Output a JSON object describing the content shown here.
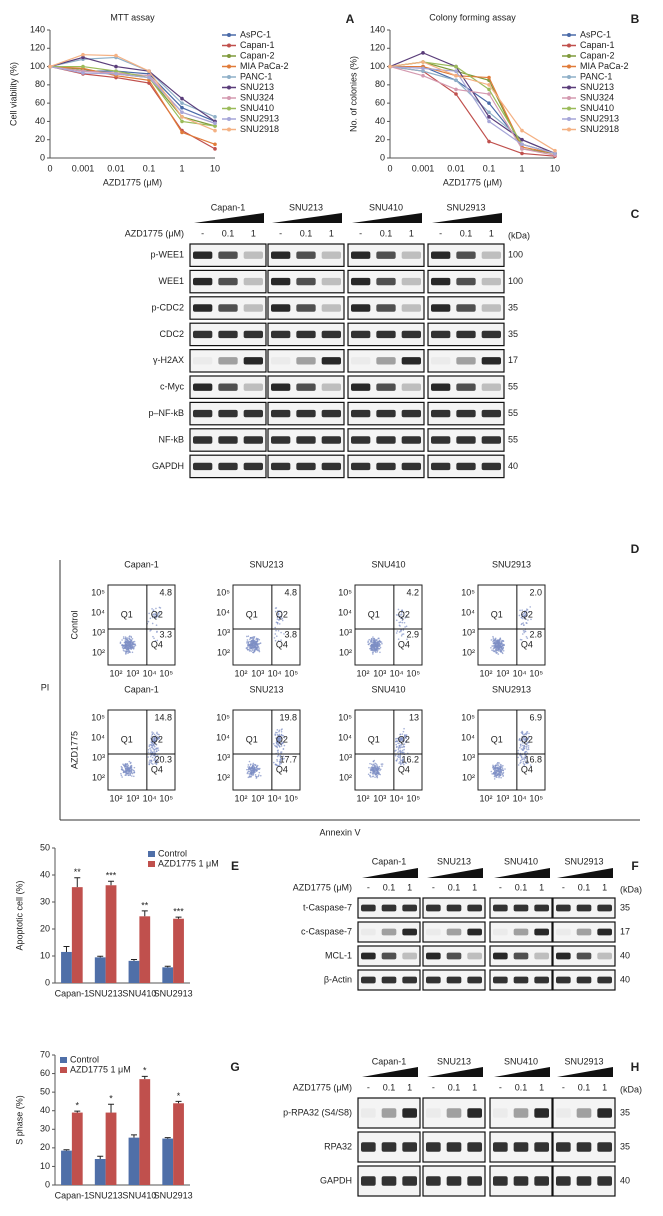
{
  "chart_data": [
    {
      "type": "line",
      "title": "MTT assay",
      "x_label": "AZD1775 (μM)",
      "y_label": "Cell viability (%)",
      "categories": [
        "0",
        "0.001",
        "0.01",
        "0.1",
        "1",
        "10"
      ],
      "ylim": [
        0,
        140
      ],
      "yticks": [
        0,
        20,
        40,
        60,
        80,
        100,
        120,
        140
      ],
      "series": [
        {
          "name": "AsPC-1",
          "color": "#4a6aa8",
          "values": [
            100,
            95,
            95,
            92,
            55,
            40
          ]
        },
        {
          "name": "Capan-1",
          "color": "#c0504d",
          "values": [
            100,
            92,
            88,
            82,
            30,
            10
          ]
        },
        {
          "name": "Capan-2",
          "color": "#7f9a3c",
          "values": [
            100,
            97,
            92,
            88,
            45,
            35
          ]
        },
        {
          "name": "MIA PaCa-2",
          "color": "#e07b39",
          "values": [
            100,
            98,
            90,
            85,
            28,
            15
          ]
        },
        {
          "name": "PANC-1",
          "color": "#8fb0c8",
          "values": [
            100,
            108,
            110,
            95,
            60,
            45
          ]
        },
        {
          "name": "SNU213",
          "color": "#5a3d7a",
          "values": [
            100,
            110,
            100,
            95,
            65,
            40
          ]
        },
        {
          "name": "SNU324",
          "color": "#d49ab0",
          "values": [
            100,
            95,
            93,
            90,
            50,
            38
          ]
        },
        {
          "name": "SNU410",
          "color": "#9bbb59",
          "values": [
            100,
            100,
            95,
            88,
            40,
            35
          ]
        },
        {
          "name": "SNU2913",
          "color": "#a6a6d8",
          "values": [
            100,
            93,
            92,
            88,
            50,
            38
          ]
        },
        {
          "name": "SNU2918",
          "color": "#f4b183",
          "values": [
            100,
            113,
            112,
            95,
            45,
            30
          ]
        }
      ]
    },
    {
      "type": "line",
      "title": "Colony forming assay",
      "x_label": "AZD1775 (μM)",
      "y_label": "No. of colonies (%)",
      "categories": [
        "0",
        "0.001",
        "0.01",
        "0.1",
        "1",
        "10"
      ],
      "ylim": [
        0,
        140
      ],
      "yticks": [
        0,
        20,
        40,
        60,
        80,
        100,
        120,
        140
      ],
      "series": [
        {
          "name": "AsPC-1",
          "color": "#4a6aa8",
          "values": [
            100,
            100,
            85,
            60,
            15,
            5
          ]
        },
        {
          "name": "Capan-1",
          "color": "#c0504d",
          "values": [
            100,
            95,
            70,
            18,
            5,
            2
          ]
        },
        {
          "name": "Capan-2",
          "color": "#7f9a3c",
          "values": [
            100,
            105,
            95,
            85,
            10,
            5
          ]
        },
        {
          "name": "MIA PaCa-2",
          "color": "#e07b39",
          "values": [
            100,
            100,
            90,
            88,
            12,
            5
          ]
        },
        {
          "name": "PANC-1",
          "color": "#8fb0c8",
          "values": [
            100,
            95,
            85,
            50,
            20,
            5
          ]
        },
        {
          "name": "SNU213",
          "color": "#5a3d7a",
          "values": [
            100,
            115,
            100,
            45,
            20,
            5
          ]
        },
        {
          "name": "SNU324",
          "color": "#d49ab0",
          "values": [
            100,
            90,
            75,
            70,
            10,
            3
          ]
        },
        {
          "name": "SNU410",
          "color": "#9bbb59",
          "values": [
            100,
            105,
            100,
            75,
            15,
            5
          ]
        },
        {
          "name": "SNU2913",
          "color": "#a6a6d8",
          "values": [
            100,
            98,
            95,
            40,
            15,
            5
          ]
        },
        {
          "name": "SNU2918",
          "color": "#f4b183",
          "values": [
            100,
            105,
            90,
            80,
            30,
            8
          ]
        }
      ]
    },
    {
      "type": "bar",
      "y_label": "Apoptotic cell (%)",
      "categories": [
        "Capan-1",
        "SNU213",
        "SNU410",
        "SNU2913"
      ],
      "ylim": [
        0,
        50
      ],
      "yticks": [
        0,
        10,
        20,
        30,
        40,
        50
      ],
      "series": [
        {
          "name": "Control",
          "color": "#4f6fa8",
          "values": [
            11.5,
            9.5,
            8.2,
            5.8
          ],
          "errors": [
            2,
            0.4,
            0.5,
            0.4
          ]
        },
        {
          "name": "AZD1775 1 μM",
          "color": "#c0504d",
          "values": [
            35.5,
            36.2,
            24.7,
            23.8
          ],
          "errors": [
            3.5,
            1.5,
            2,
            0.6
          ],
          "annotations": [
            "**",
            "***",
            "**",
            "***"
          ]
        }
      ]
    },
    {
      "type": "bar",
      "y_label": "S phase (%)",
      "categories": [
        "Capan-1",
        "SNU213",
        "SNU410",
        "SNU2913"
      ],
      "ylim": [
        0,
        70
      ],
      "yticks": [
        0,
        10,
        20,
        30,
        40,
        50,
        60,
        70
      ],
      "series": [
        {
          "name": "Control",
          "color": "#4f6fa8",
          "values": [
            18.5,
            14,
            25.5,
            25
          ],
          "errors": [
            0.5,
            1.5,
            1.5,
            0.5
          ]
        },
        {
          "name": "AZD1775 1 μM",
          "color": "#c0504d",
          "values": [
            39,
            39,
            57,
            44
          ],
          "errors": [
            0.8,
            4.5,
            1.5,
            1
          ],
          "annotations": [
            "*",
            "*",
            "*",
            "*"
          ]
        }
      ]
    }
  ],
  "panel_labels": [
    "A",
    "B",
    "C",
    "D",
    "E",
    "F",
    "G",
    "H"
  ],
  "blot_c": {
    "cell_lines": [
      "Capan-1",
      "SNU213",
      "SNU410",
      "SNU2913"
    ],
    "treatment_label": "AZD1775 (μM)",
    "doses": [
      "-",
      "0.1",
      "1"
    ],
    "unit_label": "(kDa)",
    "rows": [
      {
        "name": "p-WEE1",
        "kda": 100
      },
      {
        "name": "WEE1",
        "kda": 100
      },
      {
        "name": "p-CDC2",
        "kda": 35
      },
      {
        "name": "CDC2",
        "kda": 35
      },
      {
        "name": "γ-H2AX",
        "kda": 17
      },
      {
        "name": "c-Myc",
        "kda": 55
      },
      {
        "name": "p–NF-kB",
        "kda": 55
      },
      {
        "name": "NF-kB",
        "kda": 55
      },
      {
        "name": "GAPDH",
        "kda": 40
      }
    ]
  },
  "flow_d": {
    "cell_lines": [
      "Capan-1",
      "SNU213",
      "SNU410",
      "SNU2913"
    ],
    "conditions": [
      "Control",
      "AZD1775"
    ],
    "y_axis": "PI",
    "x_axis": "Annexin V",
    "ticks": [
      "10²",
      "10³",
      "10⁴",
      "10⁵"
    ],
    "quadrants": [
      "Q1",
      "Q2",
      "Q4"
    ],
    "q2": [
      [
        "4.8",
        "4.8",
        "4.2",
        "2.0"
      ],
      [
        "14.8",
        "19.8",
        "13",
        "6.9"
      ]
    ],
    "q4": [
      [
        "3.3",
        "3.8",
        "2.9",
        "2.8"
      ],
      [
        "20.3",
        "17.7",
        "16.2",
        "16.8"
      ]
    ]
  },
  "blot_f": {
    "cell_lines": [
      "Capan-1",
      "SNU213",
      "SNU410",
      "SNU2913"
    ],
    "treatment_label": "AZD1775 (μM)",
    "doses": [
      "-",
      "0.1",
      "1"
    ],
    "unit_label": "(kDa)",
    "rows": [
      {
        "name": "t-Caspase-7",
        "kda": 35
      },
      {
        "name": "c-Caspase-7",
        "kda": 17
      },
      {
        "name": "MCL-1",
        "kda": 40
      },
      {
        "name": "β-Actin",
        "kda": 40
      }
    ]
  },
  "blot_h": {
    "cell_lines": [
      "Capan-1",
      "SNU213",
      "SNU410",
      "SNU2913"
    ],
    "treatment_label": "AZD1775 (μM)",
    "doses": [
      "-",
      "0.1",
      "1"
    ],
    "unit_label": "(kDa)",
    "rows": [
      {
        "name": "p-RPA32 (S4/S8)",
        "kda": 35
      },
      {
        "name": "RPA32",
        "kda": 35
      },
      {
        "name": "GAPDH",
        "kda": 40
      }
    ]
  }
}
